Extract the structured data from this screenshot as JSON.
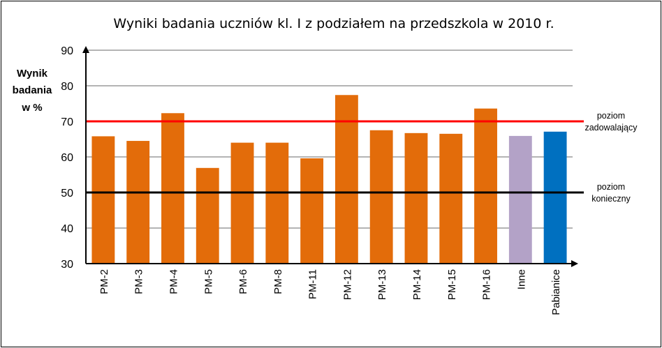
{
  "chart_data": {
    "type": "bar",
    "title": "Wyniki badania  uczniów  kl. I z podziałem na przedszkola w 2010 r.",
    "ylabel": [
      "Wynik",
      "badania",
      "w %"
    ],
    "ylim": [
      30,
      90
    ],
    "yticks": [
      30,
      40,
      50,
      60,
      70,
      80,
      90
    ],
    "grid": true,
    "categories": [
      "PM-2",
      "PM-3",
      "PM-4",
      "PM-5",
      "PM-6",
      "PM-8",
      "PM-11",
      "PM-12",
      "PM-13",
      "PM-14",
      "PM-15",
      "PM-16",
      "Inne",
      "Pabianice"
    ],
    "values": [
      65.8,
      64.5,
      72.3,
      56.9,
      64.0,
      64.0,
      59.6,
      77.4,
      67.5,
      66.7,
      66.5,
      73.6,
      65.9,
      67.1
    ],
    "colors": [
      "#e36c0a",
      "#e36c0a",
      "#e36c0a",
      "#e36c0a",
      "#e36c0a",
      "#e36c0a",
      "#e36c0a",
      "#e36c0a",
      "#e36c0a",
      "#e36c0a",
      "#e36c0a",
      "#e36c0a",
      "#b3a2c7",
      "#0070c0"
    ],
    "reference_lines": [
      {
        "value": 70,
        "color": "#ff0000",
        "label": [
          "poziom",
          "zadowalający"
        ]
      },
      {
        "value": 50,
        "color": "#000000",
        "label": [
          "poziom",
          "konieczny"
        ]
      }
    ]
  }
}
